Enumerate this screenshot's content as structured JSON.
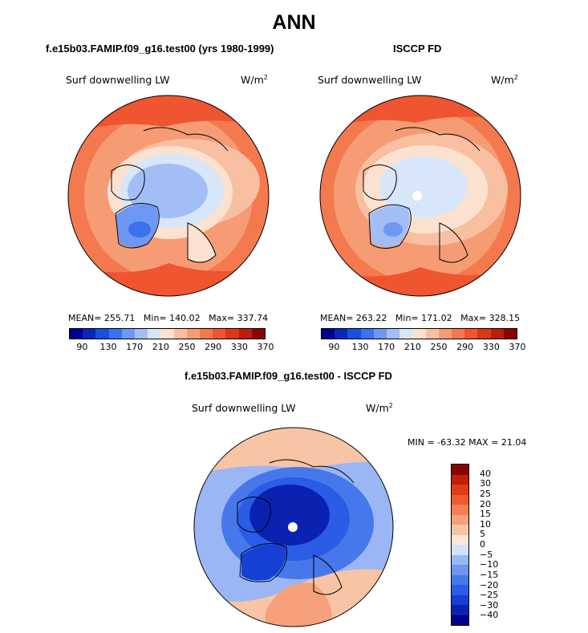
{
  "figure": {
    "title": "ANN",
    "left_subtitle": "f.e15b03.FAMIP.f09_g16.test00 (yrs 1980-1999)",
    "right_subtitle": "ISCCP FD",
    "diff_subtitle": "f.e15b03.FAMIP.f09_g16.test00 - ISCCP FD"
  },
  "colors": {
    "abs_palette": [
      "#00008f",
      "#0a27b8",
      "#1b4fe0",
      "#3c72f0",
      "#6e98f4",
      "#a2bef5",
      "#d7e6f8",
      "#fbe2d0",
      "#f8c0a0",
      "#f69c75",
      "#f4794f",
      "#ef5530",
      "#dd3717",
      "#b91d0b",
      "#8a0404"
    ],
    "diff_palette": [
      "#00008f",
      "#0a22b0",
      "#1640d4",
      "#2a5ce6",
      "#4678ec",
      "#6e96f0",
      "#9ab6f4",
      "#d2e2f8",
      "#fde6d8",
      "#f8c4a6",
      "#f6a07c",
      "#f47e56",
      "#f05a32",
      "#e23a16",
      "#c01f08",
      "#8a0404"
    ]
  },
  "chart_data": [
    {
      "type": "heatmap",
      "projection": "polar-stereographic-north",
      "title": "Surf downwelling LW",
      "units": "W/m",
      "units_exponent": "2",
      "stats": {
        "mean_label": "MEAN= 255.71",
        "min_label": "Min= 140.02",
        "max_label": "Max= 337.74"
      },
      "colorbar_ticks": [
        "90",
        "130",
        "170",
        "210",
        "250",
        "290",
        "330",
        "370"
      ],
      "regions": [
        {
          "name": "subpolar-ring",
          "value": 310
        },
        {
          "name": "arctic-ocean",
          "value": 200
        },
        {
          "name": "greenland",
          "value": 160
        }
      ]
    },
    {
      "type": "heatmap",
      "projection": "polar-stereographic-north",
      "title": "Surf downwelling LW",
      "units": "W/m",
      "units_exponent": "2",
      "stats": {
        "mean_label": "MEAN= 263.22",
        "min_label": "Min= 171.02",
        "max_label": "Max= 328.15"
      },
      "colorbar_ticks": [
        "90",
        "130",
        "170",
        "210",
        "250",
        "290",
        "330",
        "370"
      ],
      "regions": [
        {
          "name": "subpolar-ring",
          "value": 305
        },
        {
          "name": "arctic-ocean",
          "value": 235
        },
        {
          "name": "greenland",
          "value": 185
        }
      ]
    },
    {
      "type": "heatmap",
      "projection": "polar-stereographic-north",
      "title": "Surf downwelling LW",
      "units": "W/m",
      "units_exponent": "2",
      "stats": {
        "min_max_label": "MIN = -63.32 MAX =  21.04"
      },
      "colorbar_ticks": [
        "40",
        "30",
        "25",
        "20",
        "15",
        "10",
        "5",
        "0",
        "−5",
        "−10",
        "−15",
        "−20",
        "−25",
        "−30",
        "−40"
      ],
      "regions": [
        {
          "name": "arctic-ocean",
          "value": -30
        },
        {
          "name": "mid-latitudes",
          "value": -10
        },
        {
          "name": "greenland",
          "value": -25
        }
      ]
    }
  ]
}
